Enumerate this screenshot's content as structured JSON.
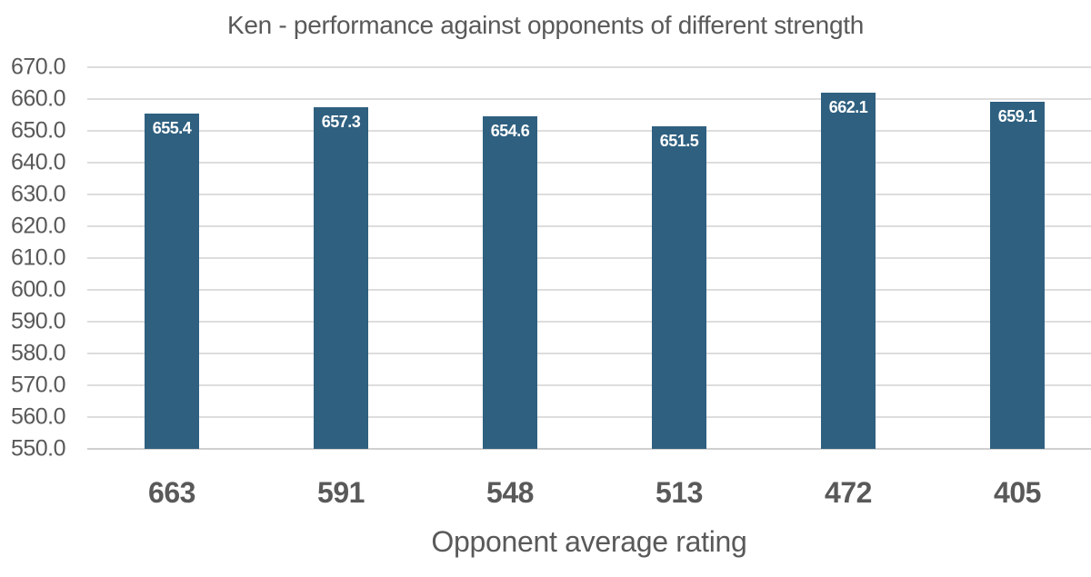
{
  "chart_data": {
    "type": "bar",
    "title": "Ken - performance against opponents of different strength",
    "xlabel": "Opponent average rating",
    "ylabel": "",
    "categories": [
      "663",
      "591",
      "548",
      "513",
      "472",
      "405"
    ],
    "values": [
      655.4,
      657.3,
      654.6,
      651.5,
      662.1,
      659.1
    ],
    "value_labels": [
      "655.4",
      "657.3",
      "654.6",
      "651.5",
      "662.1",
      "659.1"
    ],
    "ylim": [
      550,
      670
    ],
    "ytick_step": 10,
    "yticks": [
      "670.0",
      "660.0",
      "650.0",
      "640.0",
      "630.0",
      "620.0",
      "610.0",
      "600.0",
      "590.0",
      "580.0",
      "570.0",
      "560.0",
      "550.0"
    ],
    "grid": "horizontal-only",
    "legend_position": "none",
    "bar_label_position": "inside-end",
    "colors": {
      "bar_fill": "#2F6080",
      "bar_value_label": "#FFFFFF",
      "axis_text": "#595959",
      "gridline": "#DDDDDD",
      "background": "#FFFFFF"
    }
  }
}
